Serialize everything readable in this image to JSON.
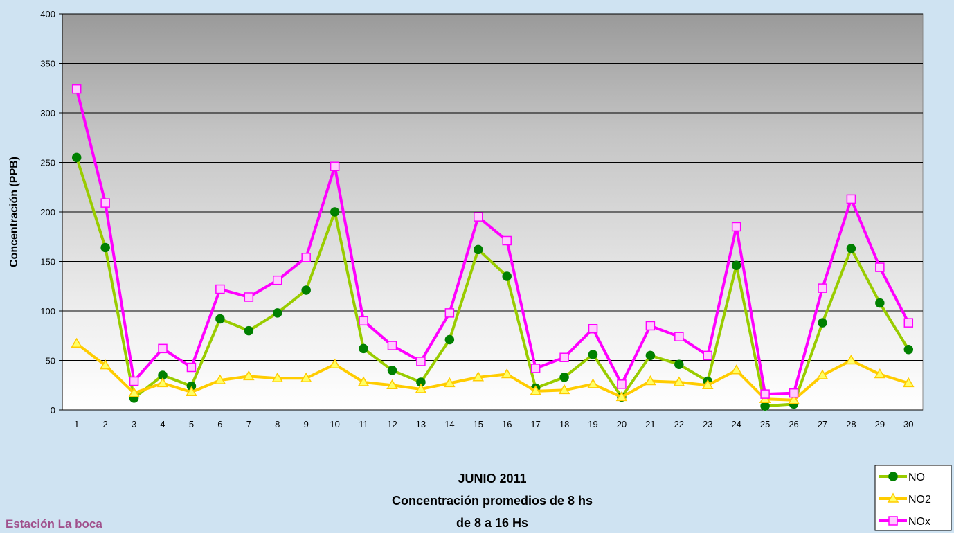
{
  "chart_data": {
    "type": "line",
    "title_lines": [
      "JUNIO 2011",
      "Concentración promedios de 8 hs",
      "de 8 a 16 Hs"
    ],
    "annotations": [
      "Estación La boca"
    ],
    "y_label": "Concentración (PPB)",
    "categories": [
      "1",
      "2",
      "3",
      "4",
      "5",
      "6",
      "7",
      "8",
      "9",
      "10",
      "11",
      "12",
      "13",
      "14",
      "15",
      "16",
      "17",
      "18",
      "19",
      "20",
      "21",
      "22",
      "23",
      "24",
      "25",
      "26",
      "27",
      "28",
      "29",
      "30"
    ],
    "ylim": [
      0,
      400
    ],
    "yticks": [
      0,
      50,
      100,
      150,
      200,
      250,
      300,
      350,
      400
    ],
    "grid": true,
    "legend": "bottom-right",
    "series": [
      {
        "name": "NO",
        "color": "#99cc00",
        "marker_color": "#008000",
        "marker": "circle",
        "values": [
          255,
          164,
          12,
          35,
          24,
          92,
          80,
          98,
          121,
          200,
          62,
          40,
          28,
          71,
          162,
          135,
          22,
          33,
          56,
          13,
          55,
          46,
          29,
          146,
          4,
          6,
          88,
          163,
          108,
          61
        ]
      },
      {
        "name": "NO2",
        "color": "#ffcc00",
        "marker_color": "#ffff66",
        "marker": "triangle",
        "values": [
          67,
          45,
          17,
          27,
          18,
          30,
          34,
          32,
          32,
          46,
          28,
          25,
          21,
          27,
          33,
          36,
          19,
          20,
          26,
          13,
          29,
          28,
          25,
          40,
          11,
          10,
          35,
          50,
          36,
          27
        ]
      },
      {
        "name": "NOx",
        "color": "#ff00ff",
        "marker_color": "#ffccff",
        "marker": "square",
        "values": [
          324,
          209,
          29,
          62,
          43,
          122,
          114,
          131,
          154,
          246,
          90,
          65,
          49,
          98,
          195,
          171,
          42,
          53,
          82,
          26,
          85,
          74,
          55,
          185,
          16,
          17,
          123,
          213,
          144,
          88
        ]
      }
    ]
  }
}
